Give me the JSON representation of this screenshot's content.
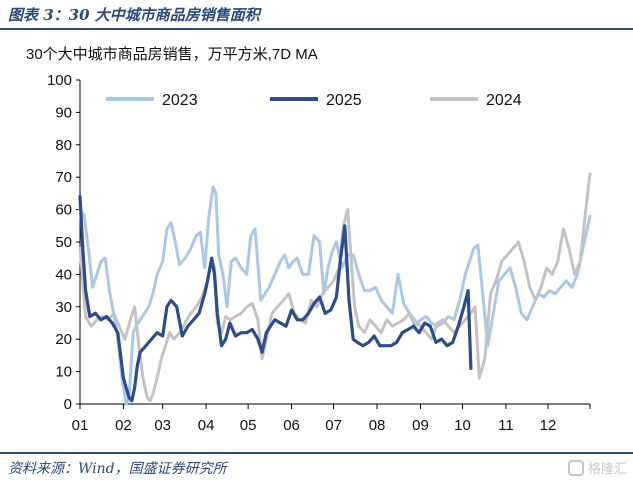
{
  "figure": {
    "title": "图表 3：30 大中城市商品房销售面积",
    "source": "资料来源：Wind，国盛证券研究所",
    "watermark": "格隆汇"
  },
  "chart_data": {
    "type": "line",
    "title": "30个大中城市商品房销售，万平方米,7D MA",
    "xlabel": "",
    "ylabel": "",
    "ylim": [
      0,
      100
    ],
    "yticks": [
      0,
      10,
      20,
      30,
      40,
      50,
      60,
      70,
      80,
      90,
      100
    ],
    "categories": [
      "01",
      "02",
      "03",
      "04",
      "05",
      "06",
      "07",
      "08",
      "09",
      "10",
      "11",
      "12"
    ],
    "x_unit": "day of year",
    "grid": false,
    "legend_position": "top",
    "series": [
      {
        "name": "2023",
        "color": "#a9c8e8",
        "x": [
          1,
          4,
          7,
          10,
          13,
          16,
          19,
          22,
          25,
          28,
          31,
          34,
          36,
          39,
          41,
          44,
          47,
          50,
          53,
          56,
          60,
          63,
          66,
          69,
          72,
          76,
          80,
          84,
          87,
          90,
          93,
          96,
          98,
          100,
          103,
          106,
          109,
          112,
          116,
          120,
          123,
          126,
          130,
          133,
          136,
          140,
          144,
          147,
          150,
          153,
          156,
          160,
          164,
          168,
          172,
          175,
          178,
          181,
          184,
          188,
          192,
          196,
          200,
          204,
          208,
          212,
          216,
          220,
          224,
          228,
          232,
          236,
          240,
          244,
          248,
          252,
          256,
          260,
          264,
          268,
          272,
          276,
          279,
          282,
          285,
          288,
          292,
          296,
          300,
          304,
          308,
          312,
          316,
          320,
          324,
          328,
          332,
          336,
          340,
          344,
          348,
          352,
          356,
          360,
          365
        ],
        "values": [
          60,
          58,
          48,
          36,
          40,
          44,
          45,
          35,
          28,
          20,
          8,
          0,
          2,
          22,
          24,
          26,
          28,
          30,
          34,
          40,
          44,
          54,
          56,
          50,
          43,
          45,
          48,
          52,
          53,
          42,
          58,
          67,
          65,
          46,
          40,
          30,
          44,
          45,
          42,
          40,
          52,
          54,
          32,
          34,
          36,
          40,
          44,
          46,
          42,
          44,
          45,
          40,
          40,
          52,
          50,
          34,
          42,
          47,
          50,
          42,
          46,
          46,
          40,
          35,
          35,
          36,
          32,
          30,
          28,
          40,
          31,
          28,
          24,
          26,
          27,
          25,
          24,
          25,
          27,
          26,
          32,
          40,
          44,
          48,
          49,
          36,
          18,
          28,
          38,
          40,
          42,
          36,
          28,
          26,
          30,
          34,
          33,
          35,
          34,
          36,
          38,
          36,
          40,
          48,
          58
        ]
      },
      {
        "name": "2025",
        "color": "#2c4d8a",
        "x": [
          1,
          3,
          5,
          8,
          12,
          16,
          20,
          24,
          28,
          32,
          36,
          38,
          40,
          42,
          44,
          48,
          52,
          56,
          60,
          63,
          66,
          70,
          74,
          78,
          82,
          86,
          90,
          92,
          95,
          97,
          99,
          102,
          105,
          108,
          112,
          116,
          120,
          124,
          128,
          131,
          134,
          137,
          140,
          144,
          148,
          152,
          156,
          160,
          164,
          168,
          172,
          176,
          180,
          184,
          187,
          190,
          193,
          196,
          199,
          203,
          207,
          211,
          215,
          219,
          223,
          227,
          231,
          235,
          239,
          243,
          247,
          251,
          255,
          259,
          263,
          267,
          271,
          275,
          278,
          280
        ],
        "values": [
          64,
          48,
          35,
          27,
          28,
          26,
          27,
          25,
          22,
          8,
          2,
          1,
          5,
          12,
          16,
          18,
          20,
          22,
          21,
          30,
          32,
          30,
          21,
          24,
          26,
          28,
          34,
          38,
          45,
          40,
          28,
          18,
          20,
          25,
          21,
          22,
          22,
          23,
          20,
          16,
          22,
          24,
          26,
          25,
          24,
          29,
          26,
          26,
          28,
          31,
          33,
          28,
          29,
          33,
          45,
          55,
          32,
          20,
          19,
          18,
          19,
          21,
          18,
          18,
          18,
          19,
          22,
          23,
          24,
          22,
          25,
          24,
          19,
          20,
          18,
          19,
          24,
          30,
          35,
          11
        ]
      },
      {
        "name": "2024",
        "color": "#c3c3c3",
        "x": [
          1,
          5,
          9,
          13,
          17,
          21,
          25,
          29,
          33,
          37,
          40,
          43,
          46,
          49,
          51,
          53,
          56,
          59,
          62,
          65,
          68,
          72,
          76,
          80,
          84,
          88,
          92,
          95,
          97,
          99,
          102,
          105,
          108,
          112,
          116,
          120,
          124,
          128,
          131,
          134,
          138,
          142,
          146,
          150,
          154,
          158,
          162,
          166,
          170,
          174,
          178,
          182,
          186,
          189,
          192,
          194,
          197,
          200,
          204,
          208,
          212,
          216,
          220,
          224,
          228,
          232,
          236,
          240,
          244,
          248,
          252,
          256,
          260,
          264,
          268,
          272,
          276,
          280,
          283,
          286,
          290,
          294,
          298,
          302,
          306,
          310,
          314,
          318,
          322,
          326,
          330,
          334,
          338,
          342,
          346,
          350,
          354,
          358,
          362,
          365
        ],
        "values": [
          48,
          27,
          24,
          26,
          27,
          26,
          28,
          24,
          20,
          26,
          30,
          18,
          8,
          2,
          1,
          3,
          8,
          14,
          18,
          22,
          20,
          22,
          25,
          28,
          30,
          33,
          38,
          45,
          42,
          25,
          22,
          27,
          26,
          27,
          28,
          30,
          31,
          26,
          14,
          20,
          28,
          30,
          32,
          34,
          28,
          26,
          25,
          32,
          30,
          34,
          36,
          38,
          42,
          55,
          60,
          48,
          30,
          24,
          22,
          26,
          24,
          22,
          26,
          24,
          25,
          26,
          28,
          26,
          24,
          22,
          20,
          25,
          26,
          24,
          22,
          24,
          26,
          28,
          30,
          8,
          14,
          34,
          38,
          44,
          46,
          48,
          50,
          44,
          36,
          32,
          36,
          42,
          40,
          44,
          54,
          48,
          40,
          44,
          60,
          71
        ]
      }
    ]
  }
}
